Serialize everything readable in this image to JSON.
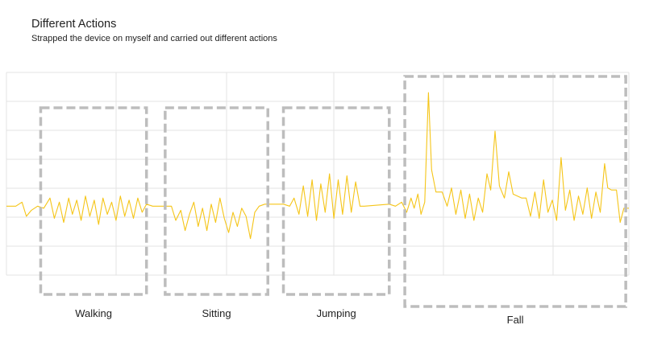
{
  "header": {
    "title": "Different Actions",
    "subtitle": "Strapped the device on myself and carried out different actions"
  },
  "chart_data": {
    "type": "line",
    "title": "Different Actions",
    "subtitle": "Strapped the device on myself and carried out different actions",
    "line_color": "#f5c518",
    "box_color": "#bdbdbd",
    "grid": true,
    "ylim": [
      0,
      100
    ],
    "xlim": [
      0,
      100
    ],
    "segments": [
      {
        "label": "Walking",
        "x_start": 5.5,
        "x_end": 22.5
      },
      {
        "label": "Sitting",
        "x_start": 25.5,
        "x_end": 42.0
      },
      {
        "label": "Jumping",
        "x_start": 44.5,
        "x_end": 61.5
      },
      {
        "label": "Fall",
        "x_start": 64.0,
        "x_end": 99.5
      }
    ],
    "series": [
      {
        "values": [
          [
            0,
            34
          ],
          [
            1.5,
            34
          ],
          [
            2.5,
            36
          ],
          [
            3.2,
            29
          ],
          [
            4,
            32
          ],
          [
            5,
            34
          ],
          [
            6,
            33
          ],
          [
            7,
            38
          ],
          [
            7.7,
            28
          ],
          [
            8.5,
            36
          ],
          [
            9.2,
            26
          ],
          [
            10,
            38
          ],
          [
            10.6,
            30
          ],
          [
            11.3,
            37
          ],
          [
            12,
            27
          ],
          [
            12.7,
            39
          ],
          [
            13.4,
            29
          ],
          [
            14.1,
            37
          ],
          [
            14.8,
            25
          ],
          [
            15.5,
            38
          ],
          [
            16.2,
            30
          ],
          [
            16.9,
            36
          ],
          [
            17.6,
            27
          ],
          [
            18.3,
            39
          ],
          [
            19,
            29
          ],
          [
            19.7,
            37
          ],
          [
            20.4,
            28
          ],
          [
            21.1,
            38
          ],
          [
            21.8,
            31
          ],
          [
            22.5,
            35
          ],
          [
            23.5,
            34
          ],
          [
            25.5,
            34
          ],
          [
            26.5,
            34
          ],
          [
            27.2,
            27
          ],
          [
            28,
            32
          ],
          [
            28.7,
            22
          ],
          [
            29.4,
            30
          ],
          [
            30.1,
            36
          ],
          [
            30.8,
            24
          ],
          [
            31.5,
            33
          ],
          [
            32.2,
            22
          ],
          [
            32.9,
            35
          ],
          [
            33.6,
            26
          ],
          [
            34.3,
            38
          ],
          [
            35,
            28
          ],
          [
            35.7,
            21
          ],
          [
            36.4,
            31
          ],
          [
            37.1,
            24
          ],
          [
            37.8,
            33
          ],
          [
            38.5,
            29
          ],
          [
            39.2,
            18
          ],
          [
            39.9,
            31
          ],
          [
            40.6,
            34
          ],
          [
            41.5,
            35
          ],
          [
            44.5,
            35
          ],
          [
            45.5,
            34
          ],
          [
            46.2,
            38
          ],
          [
            47,
            30
          ],
          [
            47.7,
            44
          ],
          [
            48.4,
            29
          ],
          [
            49.1,
            47
          ],
          [
            49.8,
            27
          ],
          [
            50.5,
            45
          ],
          [
            51.2,
            31
          ],
          [
            51.9,
            50
          ],
          [
            52.6,
            28
          ],
          [
            53.3,
            47
          ],
          [
            54,
            30
          ],
          [
            54.7,
            49
          ],
          [
            55.4,
            31
          ],
          [
            56.1,
            46
          ],
          [
            56.8,
            34
          ],
          [
            57.5,
            34
          ],
          [
            61.5,
            35
          ],
          [
            62.5,
            34
          ],
          [
            63.5,
            36
          ],
          [
            64.3,
            31
          ],
          [
            65,
            38
          ],
          [
            65.5,
            33
          ],
          [
            66.1,
            40
          ],
          [
            66.6,
            30
          ],
          [
            67.2,
            36
          ],
          [
            67.8,
            90
          ],
          [
            68.3,
            52
          ],
          [
            69,
            41
          ],
          [
            70,
            41
          ],
          [
            70.8,
            34
          ],
          [
            71.5,
            43
          ],
          [
            72.2,
            30
          ],
          [
            73,
            42
          ],
          [
            73.7,
            28
          ],
          [
            74.4,
            40
          ],
          [
            75.1,
            27
          ],
          [
            75.8,
            38
          ],
          [
            76.5,
            31
          ],
          [
            77.2,
            50
          ],
          [
            77.8,
            42
          ],
          [
            78.5,
            71
          ],
          [
            79.2,
            44
          ],
          [
            80,
            38
          ],
          [
            80.7,
            51
          ],
          [
            81.4,
            40
          ],
          [
            82.1,
            39
          ],
          [
            82.8,
            38
          ],
          [
            83.5,
            38
          ],
          [
            84.2,
            29
          ],
          [
            84.9,
            41
          ],
          [
            85.6,
            28
          ],
          [
            86.3,
            47
          ],
          [
            87,
            31
          ],
          [
            87.7,
            37
          ],
          [
            88.4,
            27
          ],
          [
            89.1,
            58
          ],
          [
            89.8,
            32
          ],
          [
            90.5,
            42
          ],
          [
            91.2,
            27
          ],
          [
            91.9,
            39
          ],
          [
            92.6,
            30
          ],
          [
            93.3,
            43
          ],
          [
            94,
            28
          ],
          [
            94.7,
            41
          ],
          [
            95.4,
            31
          ],
          [
            96.1,
            55
          ],
          [
            96.6,
            43
          ],
          [
            97.2,
            42
          ],
          [
            98,
            42
          ],
          [
            98.6,
            26
          ],
          [
            99.2,
            33
          ],
          [
            100,
            33
          ]
        ]
      }
    ]
  }
}
